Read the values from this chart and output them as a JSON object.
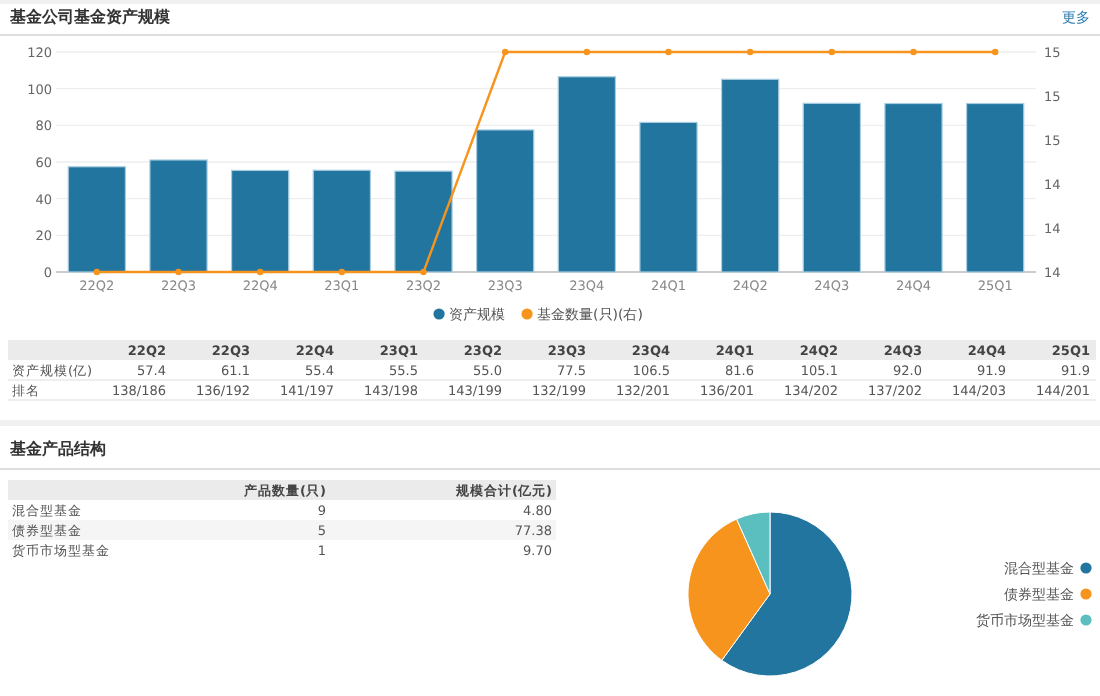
{
  "chart_data": [
    {
      "type": "bar",
      "title": "基金公司基金资产规模",
      "annotations": [
        "更多"
      ],
      "categories": [
        "22Q2",
        "22Q3",
        "22Q4",
        "23Q1",
        "23Q2",
        "23Q3",
        "23Q4",
        "24Q1",
        "24Q2",
        "24Q3",
        "24Q4",
        "25Q1"
      ],
      "series": [
        {
          "name": "资产规模",
          "type": "bar",
          "color": "#21759f",
          "values": [
            57.4,
            61.1,
            55.4,
            55.5,
            55.0,
            77.5,
            106.5,
            81.6,
            105.1,
            92.0,
            91.9,
            91.9
          ]
        },
        {
          "name": "基金数量(只)(右)",
          "type": "line",
          "axis": "y2",
          "color": "#f7941d",
          "values": [
            14,
            14,
            14,
            14,
            14,
            15,
            15,
            15,
            15,
            15,
            15,
            15
          ]
        }
      ],
      "ylim": [
        0,
        120
      ],
      "yticks": [
        0,
        20,
        40,
        60,
        80,
        100,
        120
      ],
      "y2lim": [
        14,
        15
      ],
      "y2ticks": [
        14,
        {
          "value": 14.2,
          "label": "14"
        },
        {
          "value": 14.4,
          "label": "14"
        },
        {
          "value": 14.6,
          "label": "15"
        },
        {
          "value": 14.8,
          "label": "15"
        },
        15
      ],
      "grid": "y",
      "legend": "bottom",
      "marker": "circle",
      "line_style": "solid"
    },
    {
      "type": "other",
      "data_labels": true,
      "categories": [
        "22Q2",
        "22Q3",
        "22Q4",
        "23Q1",
        "23Q2",
        "23Q3",
        "23Q4",
        "24Q1",
        "24Q2",
        "24Q3",
        "24Q4",
        "25Q1"
      ],
      "series": [
        {
          "name": "资产规模(亿)",
          "values": [
            57.4,
            61.1,
            55.4,
            55.5,
            55.0,
            77.5,
            106.5,
            81.6,
            105.1,
            92.0,
            91.9,
            91.9
          ],
          "value_labels": [
            "57.4",
            "61.1",
            "55.4",
            "55.5",
            "55.0",
            "77.5",
            "106.5",
            "81.6",
            "105.1",
            "92.0",
            "91.9",
            "91.9"
          ]
        }
      ],
      "annotations": [
        "排名",
        "138/186",
        "136/192",
        "141/197",
        "143/198",
        "143/199",
        "132/199",
        "132/201",
        "136/201",
        "134/202",
        "137/202",
        "144/203",
        "144/201"
      ]
    },
    {
      "type": "other",
      "title": "基金产品结构",
      "data_labels": true,
      "categories": [
        "混合型基金",
        "债券型基金",
        "货币市场型基金"
      ],
      "series": [
        {
          "name": "产品数量(只)",
          "values": [
            9,
            5,
            1
          ]
        },
        {
          "name": "规模合计(亿元)",
          "values": [
            4.8,
            77.38,
            9.7
          ],
          "value_labels": [
            "4.80",
            "77.38",
            "9.70"
          ]
        }
      ]
    },
    {
      "type": "pie",
      "categories": [
        "混合型基金",
        "债券型基金",
        "货币市场型基金"
      ],
      "values": [
        60,
        33.33,
        6.67
      ],
      "colors": [
        "#21759f",
        "#f7941d",
        "#5bbfc0"
      ],
      "legend": "right"
    }
  ]
}
